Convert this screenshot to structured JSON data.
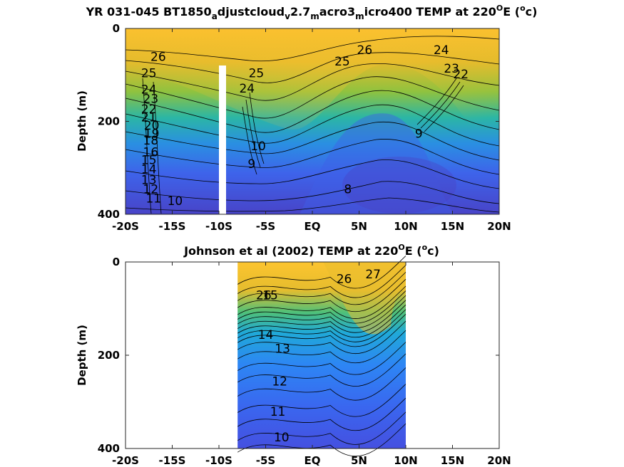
{
  "colors": {
    "colormap": [
      "#3e26a8",
      "#4450f0",
      "#2f84f8",
      "#1ba9dc",
      "#2bc09c",
      "#8cc63c",
      "#e8bc34",
      "#fdc831"
    ],
    "contour_line": "#000000",
    "gap": "#ffffff"
  },
  "chart_data": [
    {
      "type": "heatmap",
      "panel": "top",
      "title_parts": {
        "prefix": "YR 031-045 BT1850",
        "sub1": "a",
        "mid1": "djustcloud",
        "sub2": "v",
        "mid2": "2.7",
        "sub3": "m",
        "mid3": "acro3",
        "sub4": "m",
        "mid4": "icro400 TEMP at 220",
        "sup1": "O",
        "mid5": "E (",
        "sup2": "o",
        "suffix": "c)"
      },
      "ylabel": "Depth (m)",
      "xlim": [
        -20,
        20
      ],
      "ylim": [
        0,
        400
      ],
      "x_ticks": [
        -20,
        -15,
        -10,
        -5,
        0,
        5,
        10,
        15,
        20
      ],
      "x_tick_labels": [
        "-20S",
        "-15S",
        "-10S",
        "-5S",
        "EQ",
        "5N",
        "10N",
        "15N",
        "20N"
      ],
      "y_ticks": [
        0,
        200,
        400
      ],
      "y_tick_labels": [
        "0",
        "200",
        "400"
      ],
      "data_extent": [
        -20,
        20
      ],
      "gap": {
        "x_from": -10.2,
        "x_to": -9.4,
        "depth_from": 80,
        "depth_to": 400
      },
      "contour_labels": [
        {
          "text": "26",
          "x": -16.5,
          "depth": 70
        },
        {
          "text": "25",
          "x": -17.5,
          "depth": 105
        },
        {
          "text": "24",
          "x": -17.5,
          "depth": 140
        },
        {
          "text": "23",
          "x": -17.3,
          "depth": 160
        },
        {
          "text": "22",
          "x": -17.5,
          "depth": 182
        },
        {
          "text": "21",
          "x": -17.5,
          "depth": 200
        },
        {
          "text": "20",
          "x": -17.2,
          "depth": 218
        },
        {
          "text": "19",
          "x": -17.2,
          "depth": 235
        },
        {
          "text": "18",
          "x": -17.3,
          "depth": 250
        },
        {
          "text": "16",
          "x": -17.3,
          "depth": 275
        },
        {
          "text": "15",
          "x": -17.5,
          "depth": 292
        },
        {
          "text": "14",
          "x": -17.5,
          "depth": 312
        },
        {
          "text": "13",
          "x": -17.5,
          "depth": 335
        },
        {
          "text": "12",
          "x": -17.3,
          "depth": 355
        },
        {
          "text": "11",
          "x": -17.0,
          "depth": 375
        },
        {
          "text": "10",
          "x": -14.7,
          "depth": 380
        },
        {
          "text": "25",
          "x": -6.0,
          "depth": 105
        },
        {
          "text": "24",
          "x": -7.0,
          "depth": 138
        },
        {
          "text": "10",
          "x": -5.8,
          "depth": 262
        },
        {
          "text": "9",
          "x": -6.5,
          "depth": 300
        },
        {
          "text": "25",
          "x": 3.2,
          "depth": 80
        },
        {
          "text": "26",
          "x": 5.6,
          "depth": 55
        },
        {
          "text": "24",
          "x": 13.8,
          "depth": 55
        },
        {
          "text": "23",
          "x": 14.9,
          "depth": 95
        },
        {
          "text": "22",
          "x": 15.9,
          "depth": 107
        },
        {
          "text": "9",
          "x": 11.4,
          "depth": 235
        },
        {
          "text": "8",
          "x": 3.8,
          "depth": 355
        }
      ]
    },
    {
      "type": "heatmap",
      "panel": "bottom",
      "title_parts": {
        "prefix": "Johnson et al (2002) TEMP at 220",
        "sup1": "O",
        "mid1": "E (",
        "sup2": "o",
        "suffix": "c)"
      },
      "ylabel": "Depth (m)",
      "xlim": [
        -20,
        20
      ],
      "ylim": [
        0,
        400
      ],
      "x_ticks": [
        -20,
        -15,
        -10,
        -5,
        0,
        5,
        10,
        15,
        20
      ],
      "x_tick_labels": [
        "-20S",
        "-15S",
        "-10S",
        "-5S",
        "EQ",
        "5N",
        "10N",
        "15N",
        "20N"
      ],
      "y_ticks": [
        0,
        200,
        400
      ],
      "y_tick_labels": [
        "0",
        "200",
        "400"
      ],
      "data_extent": [
        -8,
        10
      ],
      "contour_labels": [
        {
          "text": "26",
          "x": -5.2,
          "depth": 80
        },
        {
          "text": "27",
          "x": 6.5,
          "depth": 35
        },
        {
          "text": "26",
          "x": 3.4,
          "depth": 45
        },
        {
          "text": "15",
          "x": -4.5,
          "depth": 80
        },
        {
          "text": "14",
          "x": -5.0,
          "depth": 165
        },
        {
          "text": "13",
          "x": -3.2,
          "depth": 195
        },
        {
          "text": "12",
          "x": -3.5,
          "depth": 265
        },
        {
          "text": "11",
          "x": -3.7,
          "depth": 330
        },
        {
          "text": "10",
          "x": -3.3,
          "depth": 385
        }
      ]
    }
  ]
}
